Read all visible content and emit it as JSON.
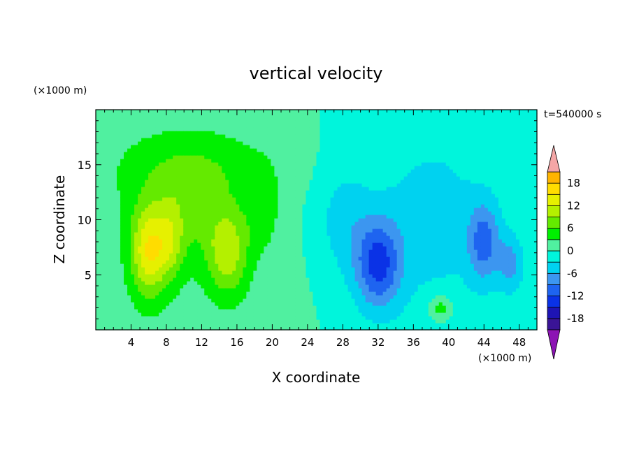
{
  "chart_data": {
    "type": "heatmap",
    "title": "vertical velocity",
    "xlabel": "X coordinate",
    "ylabel": "Z coordinate",
    "x_unit": "(×1000 m)",
    "y_unit": "(×1000 m)",
    "time_label": "t=540000 s",
    "xlim": [
      0,
      50
    ],
    "ylim": [
      0,
      20
    ],
    "x_ticks": [
      4,
      8,
      12,
      16,
      20,
      24,
      28,
      32,
      36,
      40,
      44,
      48
    ],
    "y_ticks": [
      5,
      10,
      15
    ],
    "colorbar": {
      "levels_min": -21,
      "levels_max": 21,
      "step": 3,
      "tick_labels": [
        18,
        12,
        6,
        0,
        -6,
        -12,
        -18
      ],
      "over_color": "#f4a6a6",
      "under_color": "#8c14b4",
      "colors": [
        "#a020c8",
        "#3a1496",
        "#1e14b4",
        "#0a32e6",
        "#1e64f0",
        "#3c96f0",
        "#00d2f0",
        "#00f5dc",
        "#50f0a0",
        "#00f000",
        "#64ea00",
        "#b4f000",
        "#e6f000",
        "#ffdc00",
        "#ffb400",
        "#ff8c00",
        "#ff5a00",
        "#ff1e00",
        "#e60000",
        "#f4a6a6"
      ]
    },
    "features": [
      {
        "x": 6,
        "z": 7,
        "sx": 2.0,
        "sz": 4.0,
        "w": 12
      },
      {
        "x": 8.5,
        "z": 8,
        "sx": 1.6,
        "sz": 3.5,
        "w": 6
      },
      {
        "x": 15,
        "z": 7,
        "sx": 2.4,
        "sz": 4.0,
        "w": 9
      },
      {
        "x": 10,
        "z": 11,
        "sx": 6.0,
        "sz": 5.0,
        "w": 5
      },
      {
        "x": 19,
        "z": 11,
        "sx": 1.8,
        "sz": 3.5,
        "w": 4
      },
      {
        "x": 12,
        "z": 15,
        "sx": 9.0,
        "sz": 3.0,
        "w": 3
      },
      {
        "x": 32,
        "z": 6,
        "sx": 2.6,
        "sz": 4.0,
        "w": -12
      },
      {
        "x": 44,
        "z": 8,
        "sx": 1.8,
        "sz": 3.5,
        "w": -9
      },
      {
        "x": 47,
        "z": 6,
        "sx": 1.4,
        "sz": 2.5,
        "w": -6
      },
      {
        "x": 28,
        "z": 10,
        "sx": 3.0,
        "sz": 5.0,
        "w": -4
      },
      {
        "x": 38,
        "z": 10,
        "sx": 6.0,
        "sz": 7.0,
        "w": -3
      },
      {
        "x": 39,
        "z": 2,
        "sx": 1.4,
        "sz": 1.2,
        "w": 6
      }
    ]
  }
}
